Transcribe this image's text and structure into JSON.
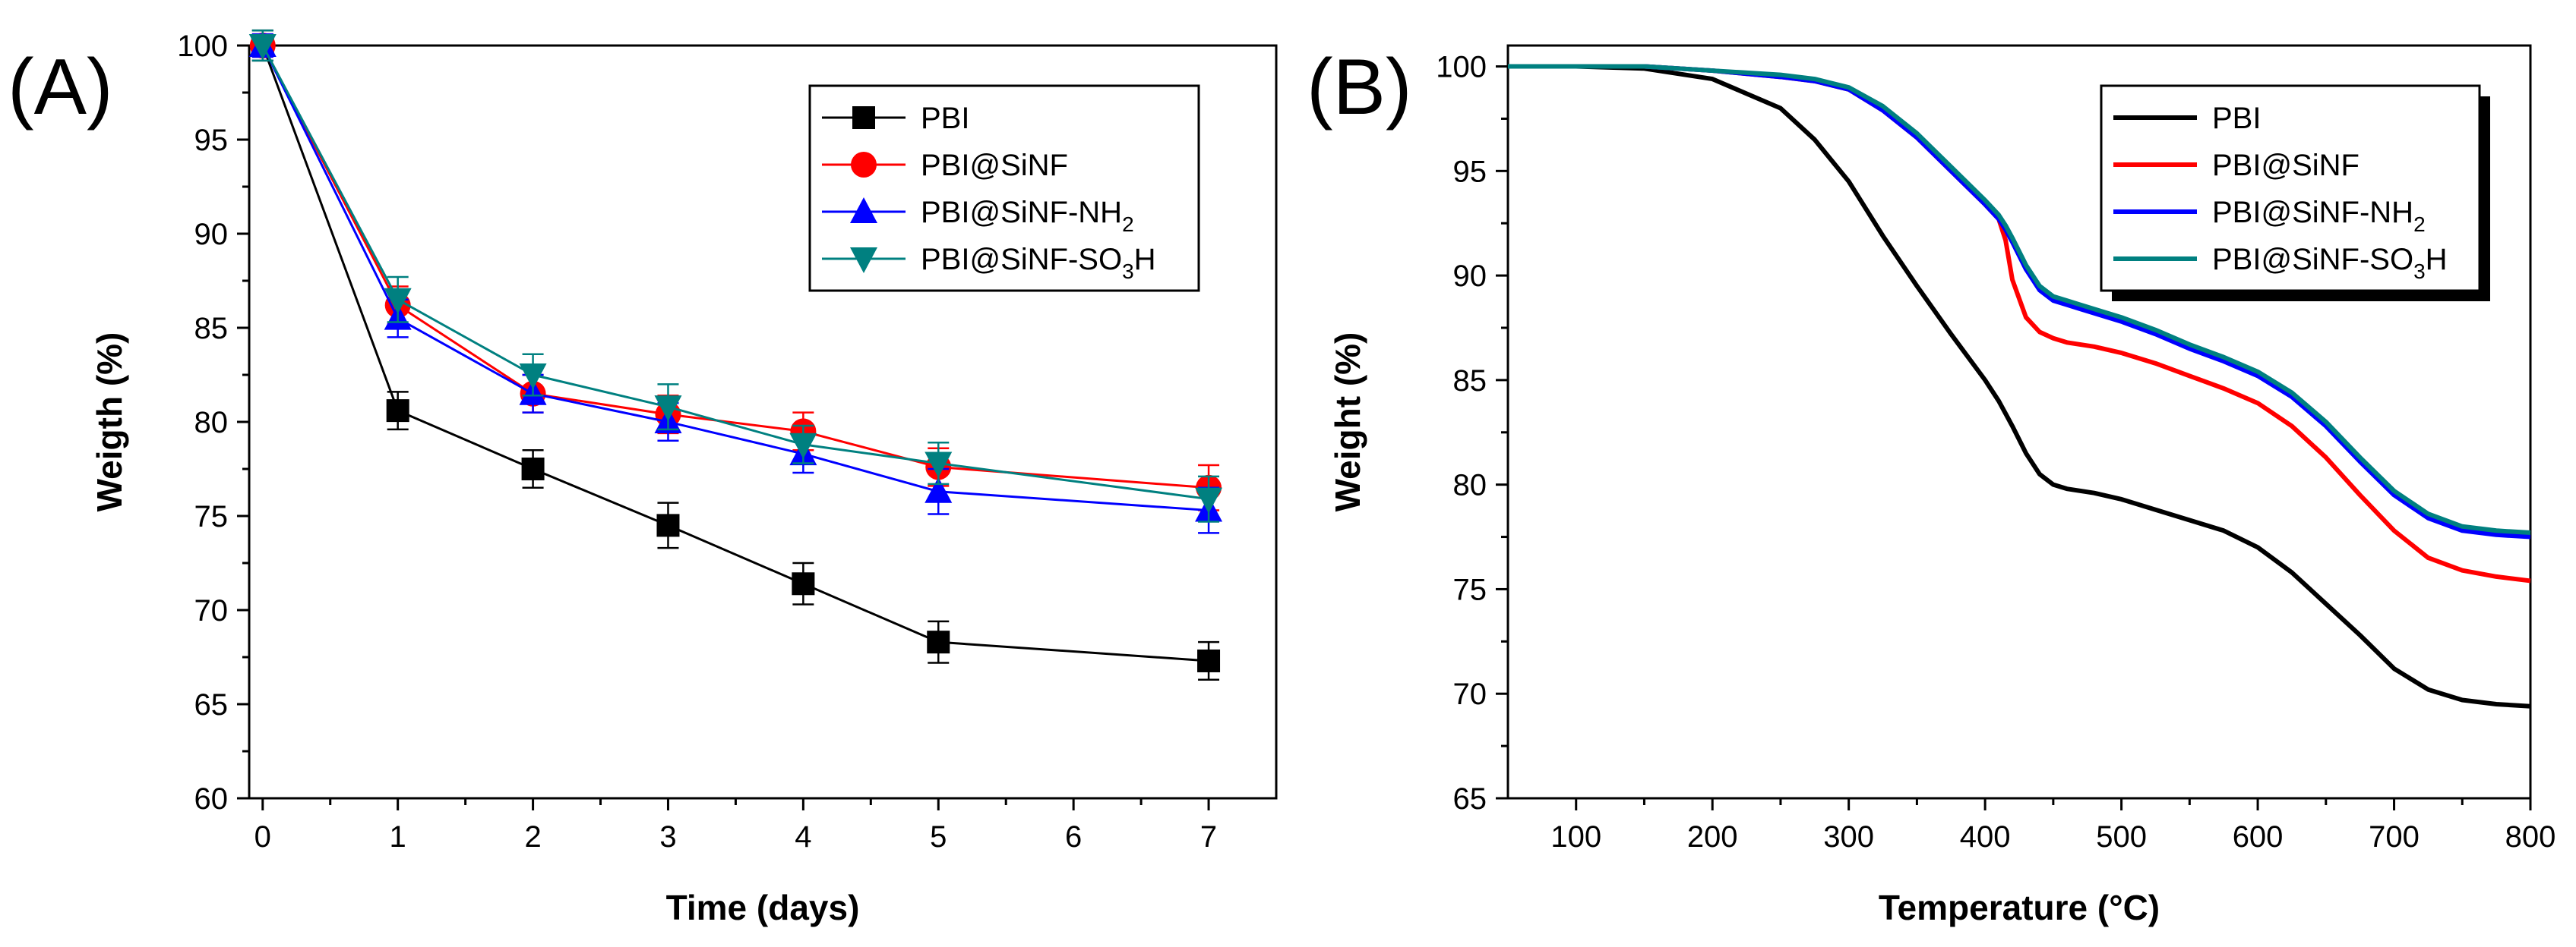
{
  "chart_data": [
    {
      "type": "line",
      "panel_label": "(A)",
      "xlabel": "Time (days)",
      "ylabel": "Weigth (%)",
      "xlim": [
        -0.1,
        7.5
      ],
      "ylim": [
        60,
        100
      ],
      "xticks": [
        0,
        1,
        2,
        3,
        4,
        5,
        6,
        7
      ],
      "yticks": [
        60,
        65,
        70,
        75,
        80,
        85,
        90,
        95,
        100
      ],
      "x": [
        0,
        1,
        2,
        3,
        4,
        5,
        7
      ],
      "legend_position": "top-right",
      "series": [
        {
          "name": "PBI",
          "name_sub": "",
          "name_suffix": "",
          "color": "#000000",
          "marker": "square",
          "values": [
            100,
            80.6,
            77.5,
            74.5,
            71.4,
            68.3,
            67.3
          ],
          "errors": [
            0.8,
            1.0,
            1.0,
            1.2,
            1.1,
            1.1,
            1.0
          ]
        },
        {
          "name": "PBI@SiNF",
          "name_sub": "",
          "name_suffix": "",
          "color": "#ff0000",
          "marker": "circle",
          "values": [
            100,
            86.2,
            81.5,
            80.4,
            79.5,
            77.6,
            76.5
          ],
          "errors": [
            0.6,
            1.0,
            1.0,
            1.0,
            1.0,
            1.0,
            1.2
          ]
        },
        {
          "name": "PBI@SiNF-NH",
          "name_sub": "2",
          "name_suffix": "",
          "color": "#0000ff",
          "marker": "triangle-up",
          "values": [
            100,
            85.5,
            81.5,
            80.0,
            78.3,
            76.3,
            75.3
          ],
          "errors": [
            0.6,
            1.0,
            1.0,
            1.0,
            1.0,
            1.2,
            1.2
          ]
        },
        {
          "name": "PBI@SiNF-SO",
          "name_sub": "3",
          "name_suffix": "H",
          "color": "#008080",
          "marker": "triangle-down",
          "values": [
            100,
            86.5,
            82.5,
            80.8,
            78.8,
            77.8,
            75.9
          ],
          "errors": [
            0.8,
            1.2,
            1.1,
            1.2,
            1.0,
            1.1,
            1.2
          ]
        }
      ]
    },
    {
      "type": "line",
      "panel_label": "(B)",
      "xlabel": "Temperature (°C)",
      "ylabel": "Weight (%)",
      "xlim": [
        50,
        800
      ],
      "ylim": [
        65,
        101
      ],
      "xticks": [
        100,
        200,
        300,
        400,
        500,
        600,
        700,
        800
      ],
      "yticks": [
        65,
        70,
        75,
        80,
        85,
        90,
        95,
        100
      ],
      "x": [
        50,
        100,
        150,
        200,
        250,
        275,
        300,
        325,
        350,
        375,
        400,
        410,
        415,
        420,
        430,
        440,
        450,
        460,
        470,
        480,
        500,
        525,
        550,
        575,
        600,
        625,
        650,
        675,
        700,
        725,
        750,
        775,
        800
      ],
      "legend_position": "top-right",
      "series": [
        {
          "name": "PBI",
          "name_sub": "",
          "name_suffix": "",
          "color": "#000000",
          "values": [
            100,
            100,
            99.9,
            99.4,
            98.0,
            96.5,
            94.5,
            91.9,
            89.5,
            87.2,
            85.0,
            84.0,
            83.4,
            82.8,
            81.5,
            80.5,
            80.0,
            79.8,
            79.7,
            79.6,
            79.3,
            78.8,
            78.3,
            77.8,
            77.0,
            75.8,
            74.3,
            72.8,
            71.2,
            70.2,
            69.7,
            69.5,
            69.4
          ]
        },
        {
          "name": "PBI@SiNF",
          "name_sub": "",
          "name_suffix": "",
          "color": "#ff0000",
          "values": [
            100,
            100,
            100,
            99.8,
            99.5,
            99.3,
            98.9,
            97.9,
            96.6,
            95.0,
            93.4,
            92.7,
            91.7,
            89.8,
            88.0,
            87.3,
            87.0,
            86.8,
            86.7,
            86.6,
            86.3,
            85.8,
            85.2,
            84.6,
            83.9,
            82.8,
            81.3,
            79.5,
            77.8,
            76.5,
            75.9,
            75.6,
            75.4
          ]
        },
        {
          "name": "PBI@SiNF-NH",
          "name_sub": "2",
          "name_suffix": "",
          "color": "#0000ff",
          "values": [
            100,
            100,
            100,
            99.8,
            99.5,
            99.3,
            98.9,
            97.9,
            96.6,
            95.0,
            93.4,
            92.7,
            92.2,
            91.6,
            90.3,
            89.3,
            88.8,
            88.6,
            88.4,
            88.2,
            87.8,
            87.2,
            86.5,
            85.9,
            85.2,
            84.2,
            82.8,
            81.1,
            79.5,
            78.4,
            77.8,
            77.6,
            77.5
          ]
        },
        {
          "name": "PBI@SiNF-SO",
          "name_sub": "3",
          "name_suffix": "H",
          "color": "#008080",
          "values": [
            100,
            100,
            100,
            99.8,
            99.6,
            99.4,
            99.0,
            98.1,
            96.8,
            95.2,
            93.6,
            92.9,
            92.4,
            91.8,
            90.5,
            89.5,
            89.0,
            88.8,
            88.6,
            88.4,
            88.0,
            87.4,
            86.7,
            86.1,
            85.4,
            84.4,
            83.0,
            81.3,
            79.7,
            78.6,
            78.0,
            77.8,
            77.7
          ]
        }
      ]
    }
  ]
}
